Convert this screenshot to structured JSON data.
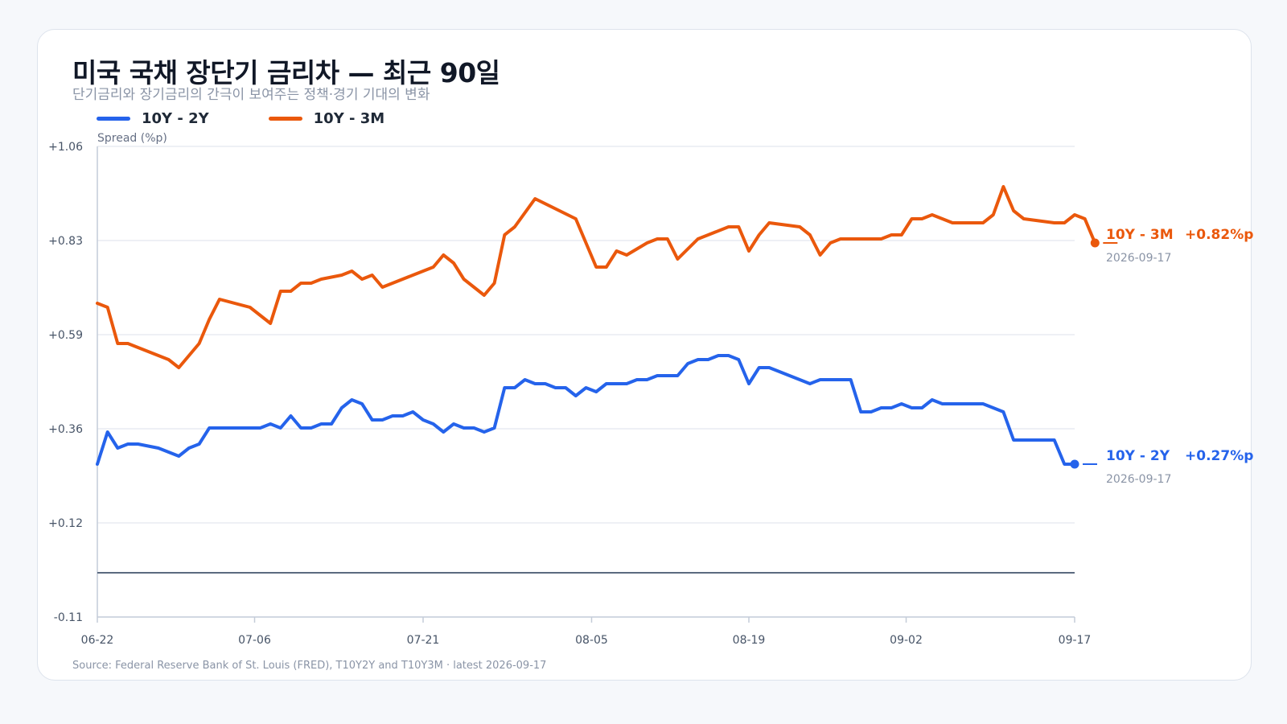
{
  "title": "미국 국채 장단기 금리차 — 최근 90일",
  "subtitle": "단기금리와 장기금리의 간극이 보여주는 정책·경기 기대의 변화",
  "source": "Source: Federal Reserve Bank of St. Louis (FRED), T10Y2Y and T10Y3M · latest 2026-09-17",
  "colors": {
    "series_2y": "#2563eb",
    "series_3m": "#ea580c",
    "grid": "#e3e8ef",
    "zero_line": "#5b6b80",
    "axis": "#c4ccd8"
  },
  "chart_data": {
    "type": "line",
    "ylabel": "Spread (%p)",
    "ylim": [
      -0.11,
      1.06
    ],
    "y_ticks": [
      "+1.06",
      "+0.83",
      "+0.59",
      "+0.36",
      "+0.12",
      "-0.11"
    ],
    "x_ticks": [
      "06-22",
      "07-06",
      "07-21",
      "08-05",
      "08-19",
      "09-02",
      "09-17"
    ],
    "grid": true,
    "legend": "top-left",
    "series": [
      {
        "name": "10Y - 2Y",
        "latest_value": "+0.27%p",
        "latest_date": "2026-09-17",
        "values": [
          0.27,
          0.35,
          0.31,
          0.32,
          0.32,
          0.31,
          0.3,
          0.29,
          0.31,
          0.32,
          0.36,
          0.36,
          0.36,
          0.36,
          0.36,
          0.36,
          0.37,
          0.36,
          0.39,
          0.36,
          0.36,
          0.37,
          0.37,
          0.41,
          0.43,
          0.42,
          0.38,
          0.38,
          0.39,
          0.39,
          0.4,
          0.38,
          0.37,
          0.35,
          0.37,
          0.36,
          0.36,
          0.35,
          0.36,
          0.46,
          0.46,
          0.48,
          0.47,
          0.47,
          0.46,
          0.46,
          0.44,
          0.46,
          0.45,
          0.47,
          0.47,
          0.47,
          0.48,
          0.48,
          0.49,
          0.49,
          0.49,
          0.52,
          0.53,
          0.53,
          0.54,
          0.54,
          0.53,
          0.47,
          0.51,
          0.51,
          0.5,
          0.49,
          0.48,
          0.47,
          0.48,
          0.48,
          0.48,
          0.48,
          0.4,
          0.4,
          0.41,
          0.41,
          0.42,
          0.41,
          0.41,
          0.43,
          0.42,
          0.42,
          0.42,
          0.42,
          0.42,
          0.41,
          0.4,
          0.33,
          0.33,
          0.33,
          0.33,
          0.33,
          0.27,
          0.27
        ],
        "x_index": [
          0,
          1,
          2,
          3,
          4,
          6,
          7,
          8,
          9,
          10,
          11,
          12,
          13,
          14,
          15,
          16,
          17,
          18,
          19,
          20,
          21,
          22,
          23,
          24,
          25,
          26,
          27,
          28,
          29,
          30,
          31,
          32,
          33,
          34,
          35,
          36,
          37,
          38,
          39,
          40,
          41,
          42,
          43,
          44,
          45,
          46,
          47,
          48,
          49,
          50,
          51,
          52,
          53,
          54,
          55,
          56,
          57,
          58,
          59,
          60,
          61,
          62,
          63,
          64,
          65,
          66,
          67,
          68,
          69,
          70,
          71,
          72,
          73,
          74,
          75,
          76,
          77,
          78,
          79,
          80,
          81,
          82,
          83,
          84,
          85,
          86,
          87,
          88,
          89,
          90,
          91,
          92,
          93,
          94,
          95,
          96
        ]
      },
      {
        "name": "10Y - 3M",
        "latest_value": "+0.82%p",
        "latest_date": "2026-09-17",
        "values": [
          0.67,
          0.66,
          0.57,
          0.57,
          0.56,
          0.53,
          0.51,
          0.57,
          0.63,
          0.68,
          0.66,
          0.64,
          0.62,
          0.7,
          0.7,
          0.72,
          0.72,
          0.73,
          0.74,
          0.75,
          0.73,
          0.74,
          0.71,
          0.74,
          0.76,
          0.79,
          0.77,
          0.73,
          0.69,
          0.72,
          0.84,
          0.86,
          0.93,
          0.88,
          0.82,
          0.76,
          0.76,
          0.8,
          0.79,
          0.82,
          0.83,
          0.83,
          0.78,
          0.83,
          0.84,
          0.86,
          0.86,
          0.8,
          0.84,
          0.87,
          0.86,
          0.84,
          0.79,
          0.82,
          0.83,
          0.83,
          0.84,
          0.84,
          0.88,
          0.88,
          0.89,
          0.88,
          0.87,
          0.87,
          0.89,
          0.96,
          0.9,
          0.88,
          0.87,
          0.87,
          0.89,
          0.88,
          0.82
        ],
        "x_index": [
          0,
          1,
          2,
          3,
          4,
          7,
          8,
          10,
          11,
          12,
          15,
          16,
          17,
          18,
          19,
          20,
          21,
          22,
          24,
          25,
          26,
          27,
          28,
          31,
          33,
          34,
          35,
          36,
          38,
          39,
          40,
          41,
          43,
          47,
          48,
          49,
          50,
          51,
          52,
          54,
          55,
          56,
          57,
          59,
          60,
          62,
          63,
          64,
          65,
          66,
          69,
          70,
          71,
          72,
          73,
          77,
          78,
          79,
          80,
          81,
          82,
          83,
          84,
          87,
          88,
          89,
          90,
          91,
          94,
          95,
          96,
          97,
          98
        ]
      }
    ]
  }
}
